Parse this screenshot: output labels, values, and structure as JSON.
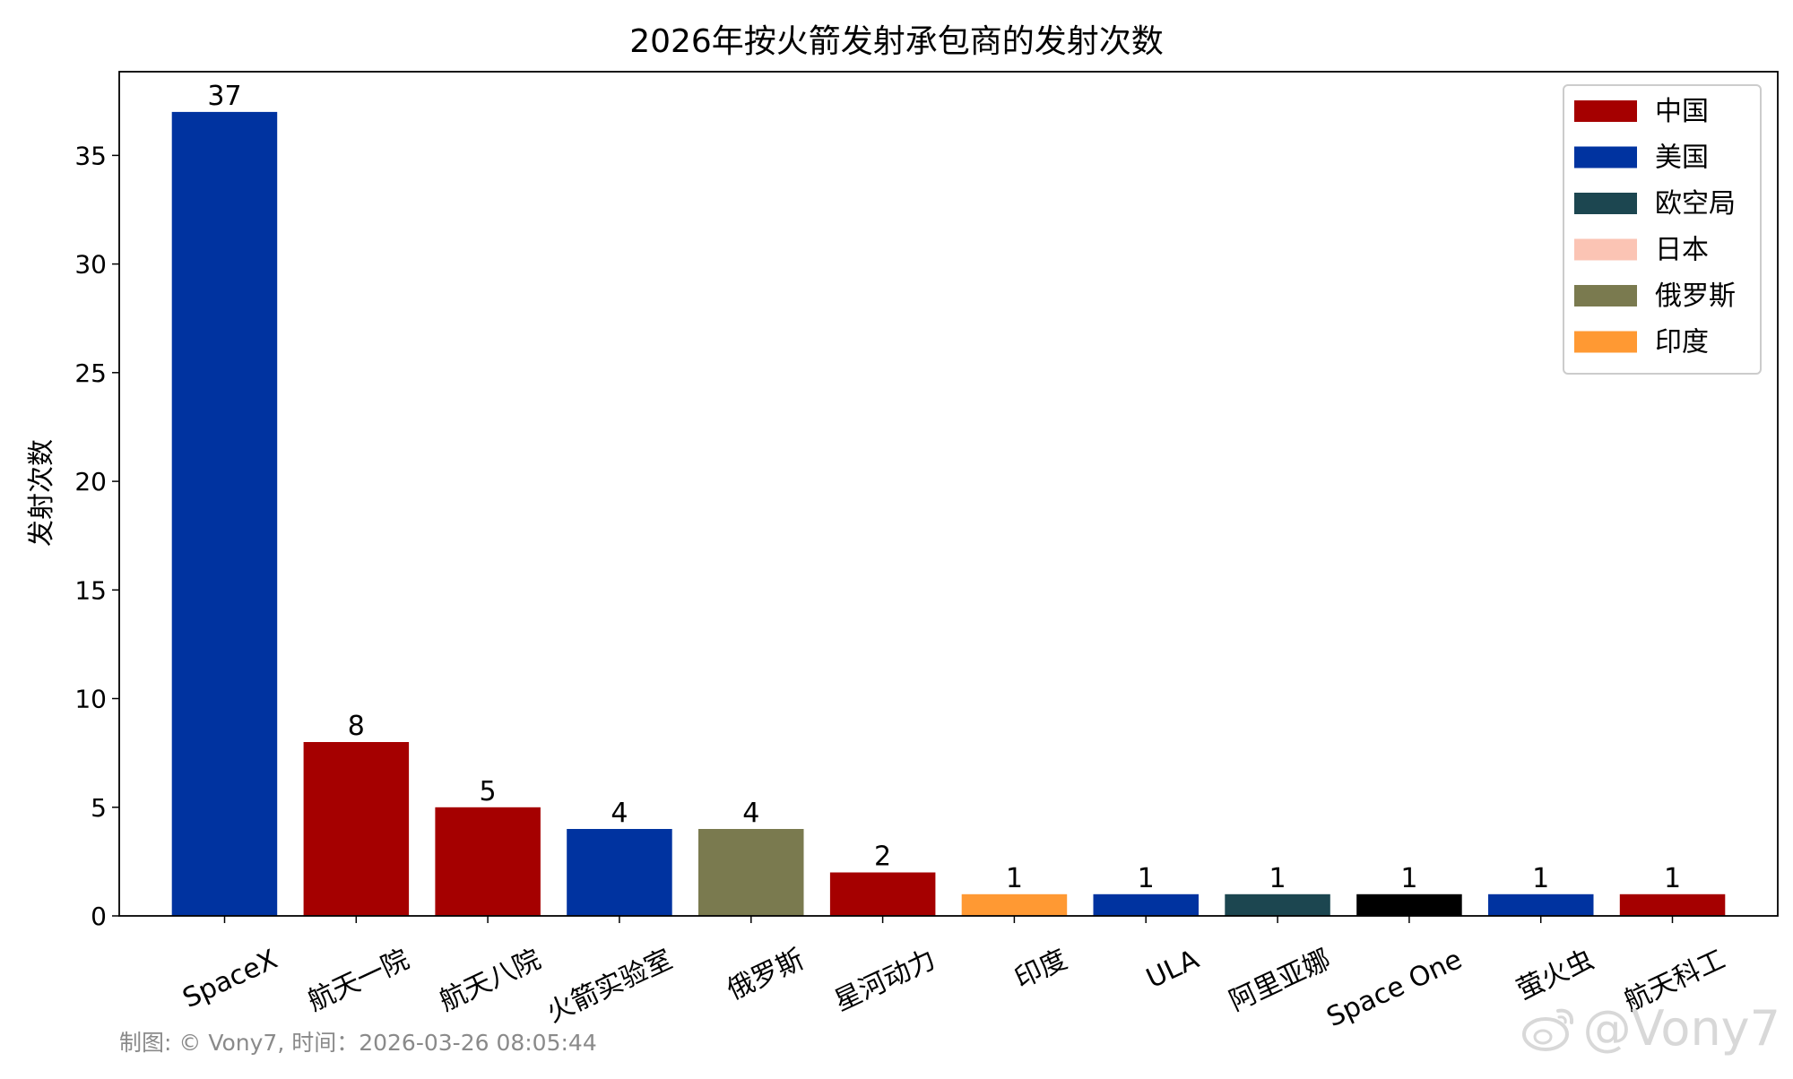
{
  "chart_data": {
    "type": "bar",
    "title": "2026年按火箭发射承包商的发射次数",
    "xlabel": "",
    "ylabel": "发射次数",
    "ylim": [
      0,
      38.85
    ],
    "yticks": [
      0,
      5,
      10,
      15,
      20,
      25,
      30,
      35
    ],
    "grid": false,
    "legend_position": "top-right",
    "categories": [
      "SpaceX",
      "航天一院",
      "航天八院",
      "火箭实验室",
      "俄罗斯",
      "星河动力",
      "印度",
      "ULA",
      "阿里亚娜",
      "Space One",
      "萤火虫",
      "航天科工"
    ],
    "values": [
      37,
      8,
      5,
      4,
      4,
      2,
      1,
      1,
      1,
      1,
      1,
      1
    ],
    "bar_colors": [
      "#0033a0",
      "#a50000",
      "#a50000",
      "#0033a0",
      "#7a7a4f",
      "#a50000",
      "#ff9933",
      "#0033a0",
      "#1c4650",
      "#000000",
      "#0033a0",
      "#a50000"
    ],
    "legend": [
      {
        "label": "中国",
        "color": "#a50000"
      },
      {
        "label": "美国",
        "color": "#0033a0"
      },
      {
        "label": "欧空局",
        "color": "#1c4650"
      },
      {
        "label": "日本",
        "color": "#fbc4b4"
      },
      {
        "label": "俄罗斯",
        "color": "#7a7a4f"
      },
      {
        "label": "印度",
        "color": "#ff9933"
      }
    ]
  },
  "footer": {
    "credit": "制图: © Vony7, 时间：2026-03-26 08:05:44",
    "watermark": "@Vony7",
    "watermark_icon": "weibo-logo-icon"
  }
}
